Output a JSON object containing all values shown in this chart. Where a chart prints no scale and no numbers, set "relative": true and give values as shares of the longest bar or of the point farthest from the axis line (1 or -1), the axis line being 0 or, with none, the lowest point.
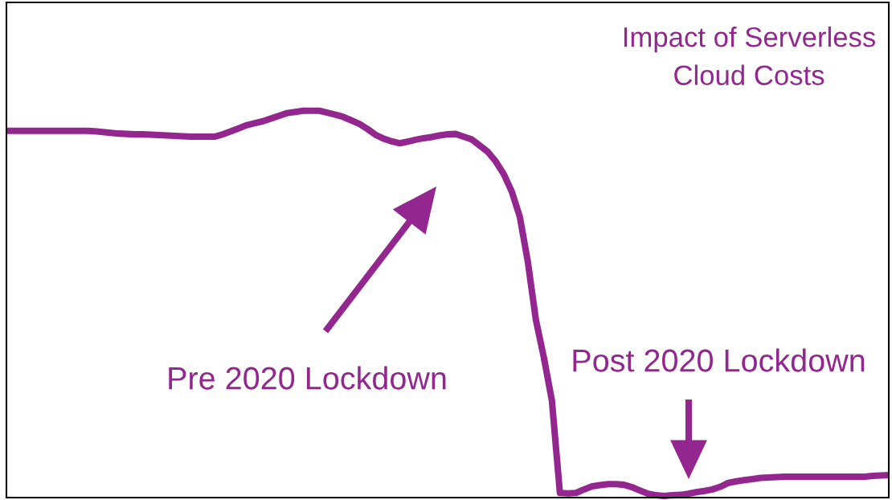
{
  "chart_data": {
    "type": "line",
    "title": "Impact of Serverless\nCloud Costs",
    "relative": true,
    "annotations": [
      "Pre 2020 Lockdown",
      "Post 2020 Lockdown"
    ],
    "categories": [
      null,
      null,
      null,
      null,
      null,
      null,
      null,
      null,
      null,
      null,
      null,
      null,
      null,
      null,
      null,
      null,
      null,
      null,
      null,
      null,
      null,
      null,
      null,
      null,
      null,
      null,
      null,
      null,
      null,
      null,
      null,
      null,
      null,
      null,
      null,
      null,
      null,
      null,
      null,
      null,
      null,
      null,
      null,
      null,
      null,
      null,
      null,
      null,
      null,
      null,
      null,
      null,
      null,
      null,
      null,
      null,
      null,
      null,
      null,
      null,
      null,
      null,
      null,
      null,
      null,
      null,
      null,
      null,
      null,
      null,
      null,
      null,
      null,
      null,
      null,
      null,
      null,
      null,
      null,
      null,
      null,
      null,
      null,
      null,
      null,
      null,
      null,
      null,
      null,
      null,
      null,
      null,
      null,
      null,
      null,
      null,
      null,
      null,
      null,
      null,
      null,
      null,
      null,
      null,
      null,
      null,
      null,
      null,
      null,
      null,
      null
    ],
    "series": [
      {
        "color": "#93278f",
        "values": [
          0.948,
          0.948,
          0.948,
          0.948,
          0.948,
          0.948,
          0.948,
          0.948,
          0.948,
          0.948,
          0.948,
          0.947,
          0.945,
          0.943,
          0.941,
          0.94,
          0.939,
          0.939,
          0.938,
          0.937,
          0.936,
          0.935,
          0.934,
          0.933,
          0.933,
          0.933,
          0.933,
          0.939,
          0.947,
          0.955,
          0.963,
          0.968,
          0.973,
          0.98,
          0.987,
          0.994,
          0.997,
          1.0,
          1.0,
          1.0,
          0.995,
          0.99,
          0.984,
          0.975,
          0.966,
          0.953,
          0.938,
          0.928,
          0.921,
          0.916,
          0.92,
          0.925,
          0.929,
          0.932,
          0.936,
          0.939,
          0.94,
          0.933,
          0.926,
          0.91,
          0.894,
          0.869,
          0.836,
          0.791,
          0.726,
          0.61,
          0.46,
          0.362,
          0.251,
          0.012,
          0.011,
          0.012,
          0.021,
          0.029,
          0.032,
          0.035,
          0.035,
          0.033,
          0.027,
          0.018,
          0.01,
          0.006,
          0.004,
          0.006,
          0.007,
          0.01,
          0.014,
          0.017,
          0.021,
          0.028,
          0.038,
          0.042,
          0.045,
          0.048,
          0.051,
          0.052,
          0.053,
          0.054,
          0.054,
          0.054,
          0.054,
          0.054,
          0.054,
          0.054,
          0.054,
          0.054,
          0.054,
          0.054,
          0.056,
          0.057,
          0.058
        ]
      }
    ]
  }
}
